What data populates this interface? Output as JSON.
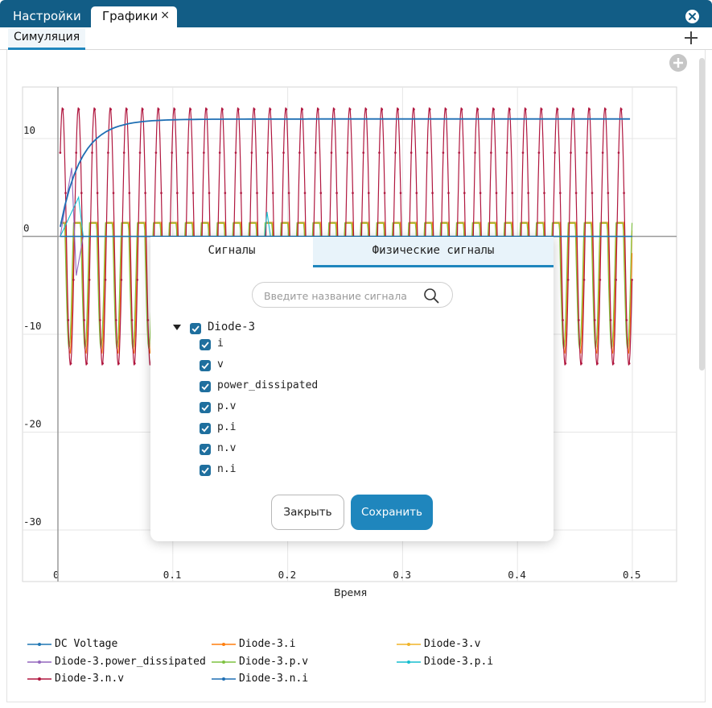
{
  "top_tabs": [
    {
      "label": "Настройки"
    },
    {
      "label": "Графики",
      "close": "×"
    }
  ],
  "sub_tabs": [
    {
      "label": "Симуляция"
    }
  ],
  "chart_data": {
    "type": "line",
    "xlabel": "Время",
    "xlim": [
      0,
      0.53
    ],
    "ylim": [
      -37.5,
      16
    ],
    "x_ticks": [
      0,
      0.1,
      0.2,
      0.3,
      0.4,
      0.5
    ],
    "x_tick_labels": [
      "0",
      "0.1",
      "0.2",
      "0.3",
      "0.4",
      "0.5"
    ],
    "y_ticks": [
      10,
      0,
      -10,
      -20,
      -30
    ],
    "y_tick_labels": [
      "10",
      "0",
      "-10",
      "-20",
      "-30"
    ],
    "grid": true,
    "legend_position": "bottom",
    "series": [
      {
        "name": "DC Voltage",
        "color": "#1f77b4",
        "values": [
          0,
          0,
          0,
          0
        ]
      },
      {
        "name": "Diode-3.i",
        "color": "#ff7f0e",
        "values": [
          0,
          -11,
          0,
          -12
        ]
      },
      {
        "name": "Diode-3.v",
        "color": "#f0b429",
        "values": [
          0,
          -10,
          0,
          -11
        ]
      },
      {
        "name": "Diode-3.power_dissipated",
        "color": "#9467bd",
        "values": [
          0,
          7,
          -4,
          0
        ]
      },
      {
        "name": "Diode-3.p.v",
        "color": "#7fc241",
        "values": [
          3.5,
          -11,
          0,
          -11
        ]
      },
      {
        "name": "Diode-3.p.i",
        "color": "#17becf",
        "values": [
          0,
          4,
          0,
          0
        ]
      },
      {
        "name": "Diode-3.n.v",
        "color": "#b0173f",
        "amplitude": 13.2,
        "cycles": 36
      },
      {
        "name": "Diode-3.n.i",
        "color": "#1f6fb4",
        "values": [
          0,
          10.5,
          11.8,
          12
        ]
      }
    ]
  },
  "dialog": {
    "tabs": [
      {
        "label": "Сигналы"
      },
      {
        "label": "Физические сигналы"
      }
    ],
    "search": {
      "placeholder": "Введите название сигнала",
      "icon": "search-icon"
    },
    "tree": {
      "root": "Diode-3",
      "children": [
        "i",
        "v",
        "power_dissipated",
        "p.v",
        "p.i",
        "n.v",
        "n.i"
      ]
    },
    "close_label": "Закрыть",
    "save_label": "Сохранить"
  },
  "colors": {
    "header": "#125d86",
    "accent": "#1f86bd",
    "checkbox": "#1f6f9e"
  }
}
